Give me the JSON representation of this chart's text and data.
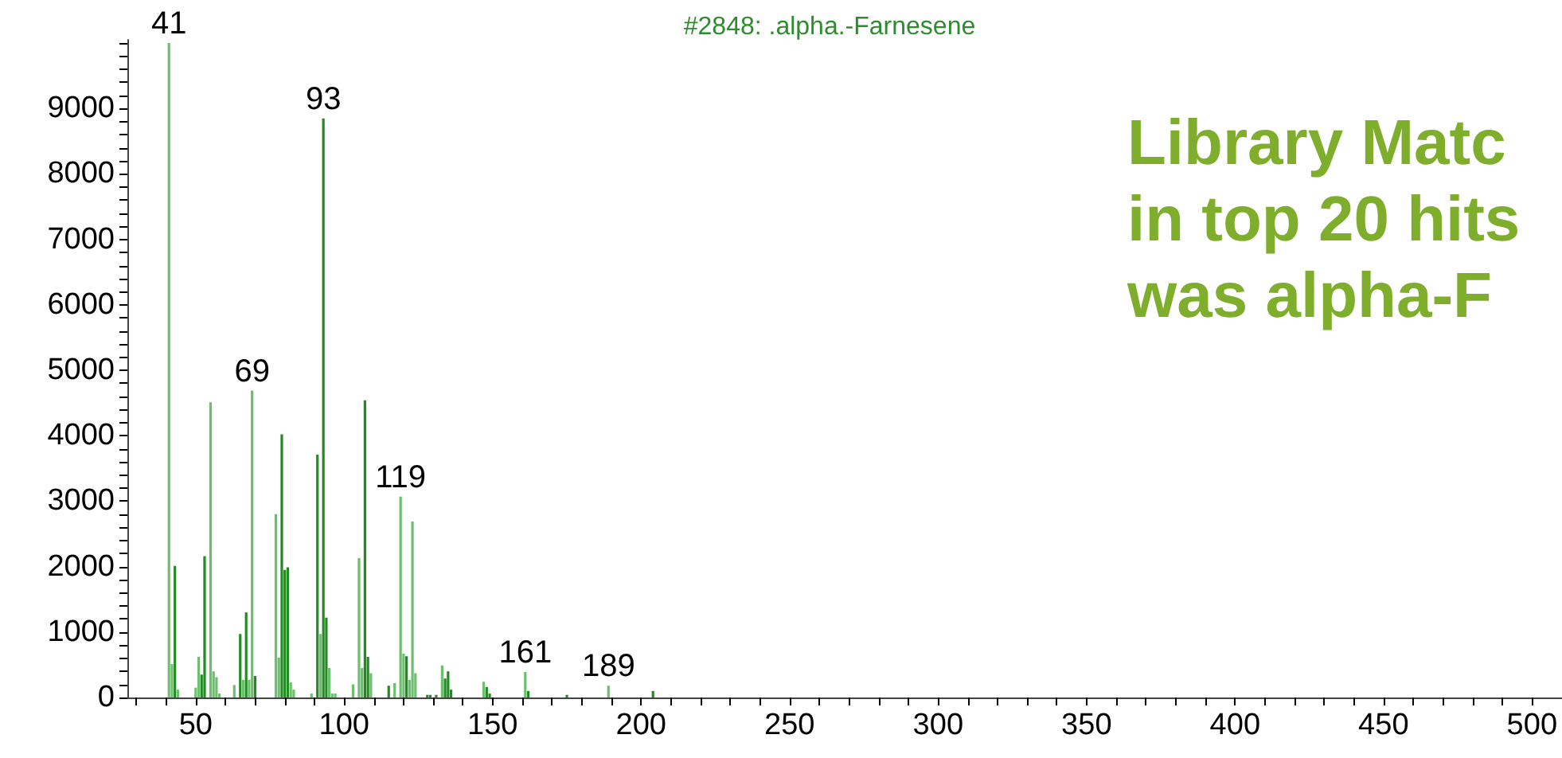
{
  "chart_data": {
    "type": "bar",
    "title": "#2848: .alpha.-Farnesene",
    "annotations": [
      "Library Matc",
      "in top 20 hits",
      "was alpha-F",
      {
        "text": "41",
        "x": 41,
        "y": 10000
      },
      {
        "text": "69",
        "x": 69,
        "y": 4690
      },
      {
        "text": "93",
        "x": 93,
        "y": 8850
      },
      {
        "text": "119",
        "x": 119,
        "y": 3070
      },
      {
        "text": "161",
        "x": 161,
        "y": 390
      },
      {
        "text": "189",
        "x": 189,
        "y": 180
      }
    ],
    "x": [
      41,
      42,
      43,
      44,
      50,
      51,
      52,
      53,
      55,
      56,
      57,
      58,
      63,
      65,
      66,
      67,
      68,
      69,
      70,
      77,
      78,
      79,
      80,
      81,
      82,
      83,
      89,
      91,
      92,
      93,
      94,
      95,
      96,
      97,
      103,
      105,
      106,
      107,
      108,
      109,
      115,
      117,
      119,
      120,
      121,
      122,
      123,
      124,
      128,
      129,
      131,
      133,
      134,
      135,
      136,
      147,
      148,
      149,
      161,
      162,
      175,
      189,
      204
    ],
    "values": [
      10000,
      510,
      2010,
      120,
      150,
      620,
      350,
      2160,
      4510,
      400,
      310,
      60,
      190,
      970,
      270,
      1300,
      270,
      4690,
      330,
      2800,
      610,
      4020,
      1950,
      1990,
      230,
      120,
      60,
      3710,
      970,
      8850,
      1220,
      450,
      60,
      60,
      200,
      2130,
      450,
      4540,
      620,
      370,
      180,
      220,
      3070,
      670,
      630,
      270,
      2690,
      370,
      40,
      40,
      40,
      490,
      290,
      400,
      120,
      240,
      160,
      60,
      390,
      100,
      40,
      180,
      100
    ],
    "colors": [
      "#6cbf6c",
      "#6cbf6c",
      "#228b22",
      "#6cbf6c",
      "#6cbf6c",
      "#6cbf6c",
      "#228b22",
      "#228b22",
      "#6cbf6c",
      "#6cbf6c",
      "#6cbf6c",
      "#6cbf6c",
      "#6cbf6c",
      "#228b22",
      "#6cbf6c",
      "#228b22",
      "#6cbf6c",
      "#6cbf6c",
      "#228b22",
      "#6cbf6c",
      "#6cbf6c",
      "#228b22",
      "#228b22",
      "#228b22",
      "#6cbf6c",
      "#6cbf6c",
      "#6cbf6c",
      "#228b22",
      "#6cbf6c",
      "#228b22",
      "#228b22",
      "#6cbf6c",
      "#6cbf6c",
      "#6cbf6c",
      "#6cbf6c",
      "#6cbf6c",
      "#6cbf6c",
      "#228b22",
      "#228b22",
      "#6cbf6c",
      "#228b22",
      "#6cbf6c",
      "#6cbf6c",
      "#6cbf6c",
      "#228b22",
      "#6cbf6c",
      "#6cbf6c",
      "#6cbf6c",
      "#228b22",
      "#228b22",
      "#228b22",
      "#6cbf6c",
      "#228b22",
      "#228b22",
      "#228b22",
      "#6cbf6c",
      "#228b22",
      "#228b22",
      "#6cbf6c",
      "#228b22",
      "#228b22",
      "#6cbf6c",
      "#228b22"
    ],
    "xlim": [
      27,
      510
    ],
    "xticks": [
      {
        "value": 30,
        "label": null
      },
      {
        "value": 40,
        "label": null
      },
      50,
      {
        "value": 60,
        "label": null
      },
      {
        "value": 70,
        "label": null
      },
      {
        "value": 80,
        "label": null
      },
      {
        "value": 90,
        "label": null
      },
      100,
      {
        "value": 110,
        "label": null
      },
      {
        "value": 120,
        "label": null
      },
      {
        "value": 130,
        "label": null
      },
      {
        "value": 140,
        "label": null
      },
      150,
      {
        "value": 160,
        "label": null
      },
      {
        "value": 170,
        "label": null
      },
      {
        "value": 180,
        "label": null
      },
      {
        "value": 190,
        "label": null
      },
      200,
      {
        "value": 210,
        "label": null
      },
      {
        "value": 220,
        "label": null
      },
      {
        "value": 230,
        "label": null
      },
      {
        "value": 240,
        "label": null
      },
      250,
      {
        "value": 260,
        "label": null
      },
      {
        "value": 270,
        "label": null
      },
      {
        "value": 280,
        "label": null
      },
      {
        "value": 290,
        "label": null
      },
      300,
      {
        "value": 310,
        "label": null
      },
      {
        "value": 320,
        "label": null
      },
      {
        "value": 330,
        "label": null
      },
      {
        "value": 340,
        "label": null
      },
      350,
      {
        "value": 360,
        "label": null
      },
      {
        "value": 370,
        "label": null
      },
      {
        "value": 380,
        "label": null
      },
      {
        "value": 390,
        "label": null
      },
      400,
      {
        "value": 410,
        "label": null
      },
      {
        "value": 420,
        "label": null
      },
      {
        "value": 430,
        "label": null
      },
      {
        "value": 440,
        "label": null
      },
      450,
      {
        "value": 460,
        "label": null
      },
      {
        "value": 470,
        "label": null
      },
      {
        "value": 480,
        "label": null
      },
      {
        "value": 490,
        "label": null
      },
      500
    ],
    "ylim": [
      0,
      10050
    ],
    "yticks": [
      0,
      {
        "value": 200,
        "label": null
      },
      {
        "value": 400,
        "label": null
      },
      {
        "value": 600,
        "label": null
      },
      {
        "value": 800,
        "label": null
      },
      1000,
      {
        "value": 1200,
        "label": null
      },
      {
        "value": 1400,
        "label": null
      },
      {
        "value": 1600,
        "label": null
      },
      {
        "value": 1800,
        "label": null
      },
      2000,
      {
        "value": 2200,
        "label": null
      },
      {
        "value": 2400,
        "label": null
      },
      {
        "value": 2600,
        "label": null
      },
      {
        "value": 2800,
        "label": null
      },
      3000,
      {
        "value": 3200,
        "label": null
      },
      {
        "value": 3400,
        "label": null
      },
      {
        "value": 3600,
        "label": null
      },
      {
        "value": 3800,
        "label": null
      },
      4000,
      {
        "value": 4200,
        "label": null
      },
      {
        "value": 4400,
        "label": null
      },
      {
        "value": 4600,
        "label": null
      },
      {
        "value": 4800,
        "label": null
      },
      5000,
      {
        "value": 5200,
        "label": null
      },
      {
        "value": 5400,
        "label": null
      },
      {
        "value": 5600,
        "label": null
      },
      {
        "value": 5800,
        "label": null
      },
      6000,
      {
        "value": 6200,
        "label": null
      },
      {
        "value": 6400,
        "label": null
      },
      {
        "value": 6600,
        "label": null
      },
      {
        "value": 6800,
        "label": null
      },
      7000,
      {
        "value": 7200,
        "label": null
      },
      {
        "value": 7400,
        "label": null
      },
      {
        "value": 7600,
        "label": null
      },
      {
        "value": 7800,
        "label": null
      },
      8000,
      {
        "value": 8200,
        "label": null
      },
      {
        "value": 8400,
        "label": null
      },
      {
        "value": 8600,
        "label": null
      },
      {
        "value": 8800,
        "label": null
      },
      9000,
      {
        "value": 9200,
        "label": null
      },
      {
        "value": 9400,
        "label": null
      },
      {
        "value": 9600,
        "label": null
      },
      {
        "value": 9800,
        "label": null
      },
      {
        "value": 10000,
        "label": null
      }
    ]
  }
}
